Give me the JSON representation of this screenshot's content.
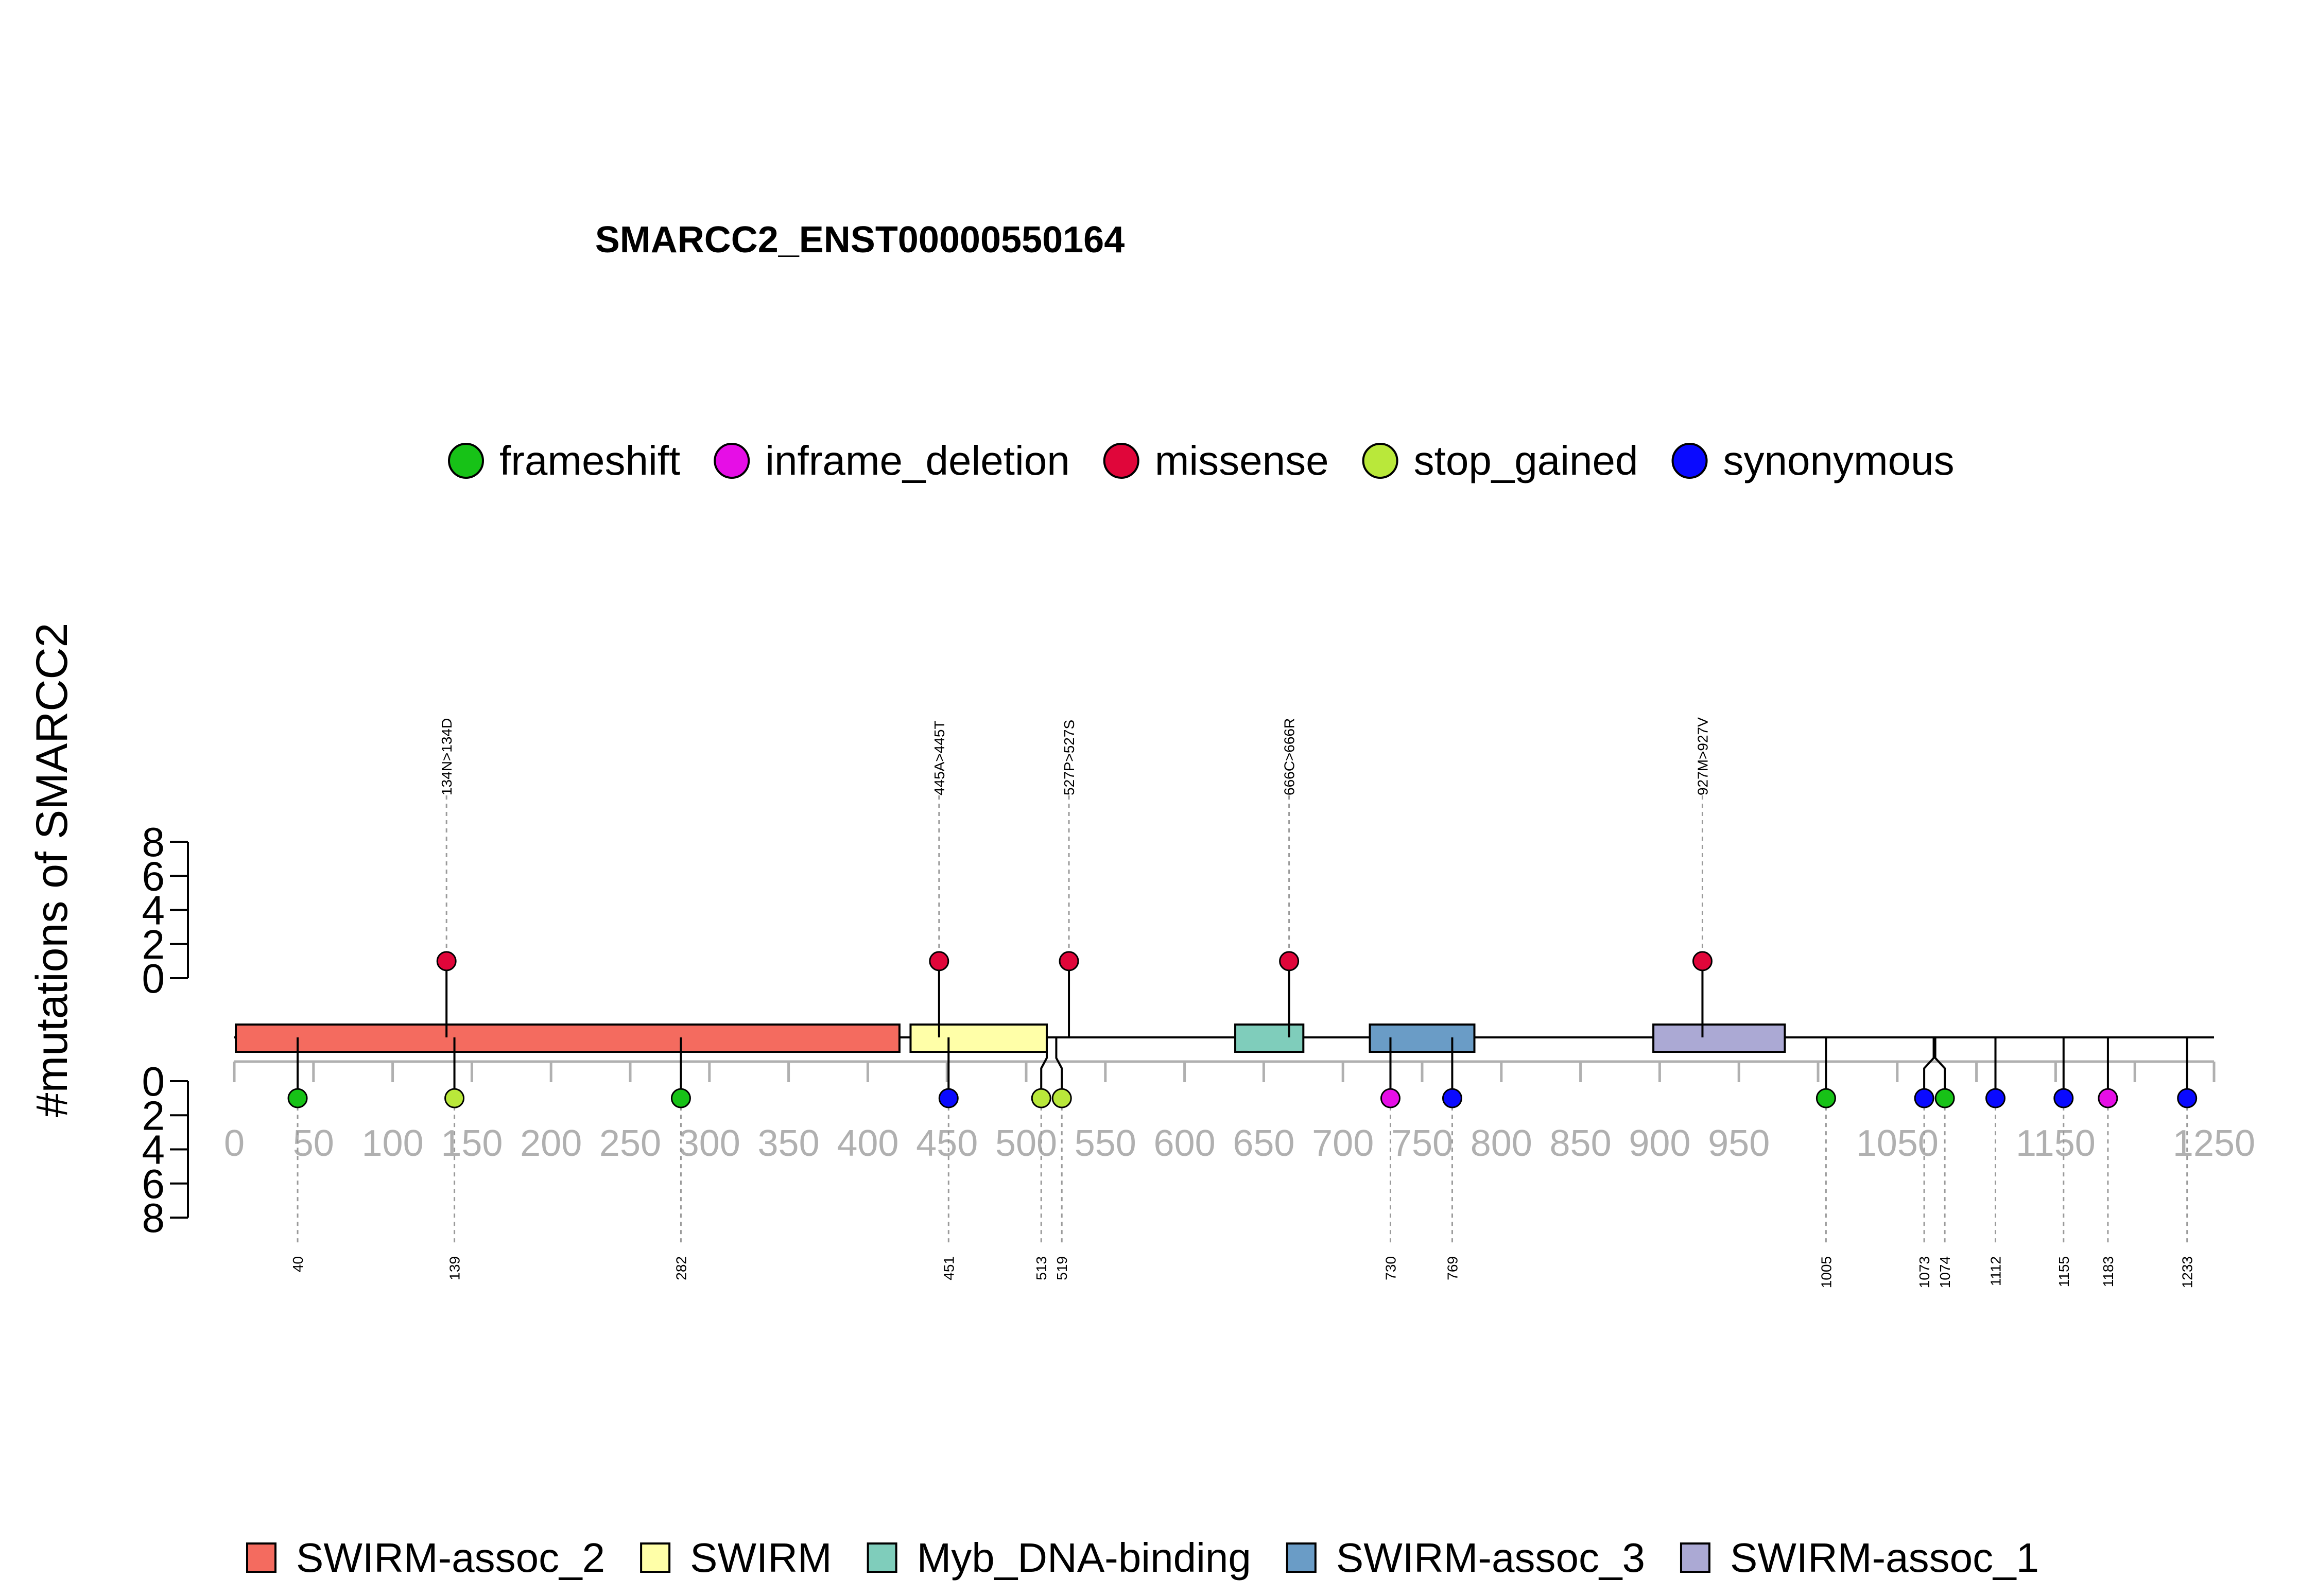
{
  "chart_data": {
    "type": "lollipop",
    "title": "SMARCC2_ENST00000550164",
    "ylabel": "#mutations of SMARCC2",
    "protein_length": 1250,
    "xlim": [
      0,
      1250
    ],
    "x_ticks": [
      0,
      50,
      100,
      150,
      200,
      250,
      300,
      350,
      400,
      450,
      500,
      550,
      600,
      650,
      700,
      750,
      800,
      850,
      900,
      950,
      1050,
      1150,
      1250
    ],
    "x_tick_labels": [
      "0",
      "50",
      "100",
      "150",
      "200",
      "250",
      "300",
      "350",
      "400",
      "450",
      "500",
      "550",
      "600",
      "650",
      "700",
      "750",
      "800",
      "850",
      "900",
      "950",
      "1050",
      "1150",
      "1250"
    ],
    "y_ticks": [
      0,
      2,
      4,
      6,
      8
    ],
    "y_tick_labels": [
      "0",
      "2",
      "4",
      "6",
      "8"
    ],
    "ylim": [
      0,
      8
    ],
    "mutation_types": [
      {
        "name": "frameshift",
        "color": "#17c217"
      },
      {
        "name": "inframe_deletion",
        "color": "#e60ee6"
      },
      {
        "name": "missense",
        "color": "#e0063a"
      },
      {
        "name": "stop_gained",
        "color": "#b9e83a"
      },
      {
        "name": "synonymous",
        "color": "#0a0aff"
      }
    ],
    "domains": [
      {
        "name": "SWIRM-assoc_2",
        "start": 1,
        "end": 420,
        "color": "#f46b5f"
      },
      {
        "name": "SWIRM",
        "start": 427,
        "end": 513,
        "color": "#ffffa8"
      },
      {
        "name": "Myb_DNA-binding",
        "start": 632,
        "end": 675,
        "color": "#7fcdbb"
      },
      {
        "name": "SWIRM-assoc_3",
        "start": 717,
        "end": 783,
        "color": "#6a9cc6"
      },
      {
        "name": "SWIRM-assoc_1",
        "start": 896,
        "end": 979,
        "color": "#aba9d4"
      }
    ],
    "mutations_top": [
      {
        "position": 134,
        "type": "missense",
        "count": 1,
        "label": "134N>134D"
      },
      {
        "position": 445,
        "type": "missense",
        "count": 1,
        "label": "445A>445T"
      },
      {
        "position": 527,
        "type": "missense",
        "count": 1,
        "label": "527P>527S"
      },
      {
        "position": 666,
        "type": "missense",
        "count": 1,
        "label": "666C>666R"
      },
      {
        "position": 927,
        "type": "missense",
        "count": 1,
        "label": "927M>927V"
      }
    ],
    "mutations_bottom": [
      {
        "position": 40,
        "type": "frameshift",
        "count": 1,
        "label": "40"
      },
      {
        "position": 139,
        "type": "stop_gained",
        "count": 1,
        "label": "139"
      },
      {
        "position": 282,
        "type": "frameshift",
        "count": 1,
        "label": "282"
      },
      {
        "position": 451,
        "type": "synonymous",
        "count": 1,
        "label": "451"
      },
      {
        "position": 513,
        "type": "stop_gained",
        "count": 1,
        "label": "513"
      },
      {
        "position": 519,
        "type": "stop_gained",
        "count": 1,
        "label": "519"
      },
      {
        "position": 730,
        "type": "inframe_deletion",
        "count": 1,
        "label": "730"
      },
      {
        "position": 769,
        "type": "synonymous",
        "count": 1,
        "label": "769"
      },
      {
        "position": 1005,
        "type": "frameshift",
        "count": 1,
        "label": "1005"
      },
      {
        "position": 1073,
        "type": "synonymous",
        "count": 1,
        "label": "1073"
      },
      {
        "position": 1074,
        "type": "frameshift",
        "count": 1,
        "label": "1074"
      },
      {
        "position": 1112,
        "type": "synonymous",
        "count": 1,
        "label": "1112"
      },
      {
        "position": 1155,
        "type": "synonymous",
        "count": 1,
        "label": "1155"
      },
      {
        "position": 1183,
        "type": "inframe_deletion",
        "count": 1,
        "label": "1183"
      },
      {
        "position": 1233,
        "type": "synonymous",
        "count": 1,
        "label": "1233"
      }
    ]
  }
}
